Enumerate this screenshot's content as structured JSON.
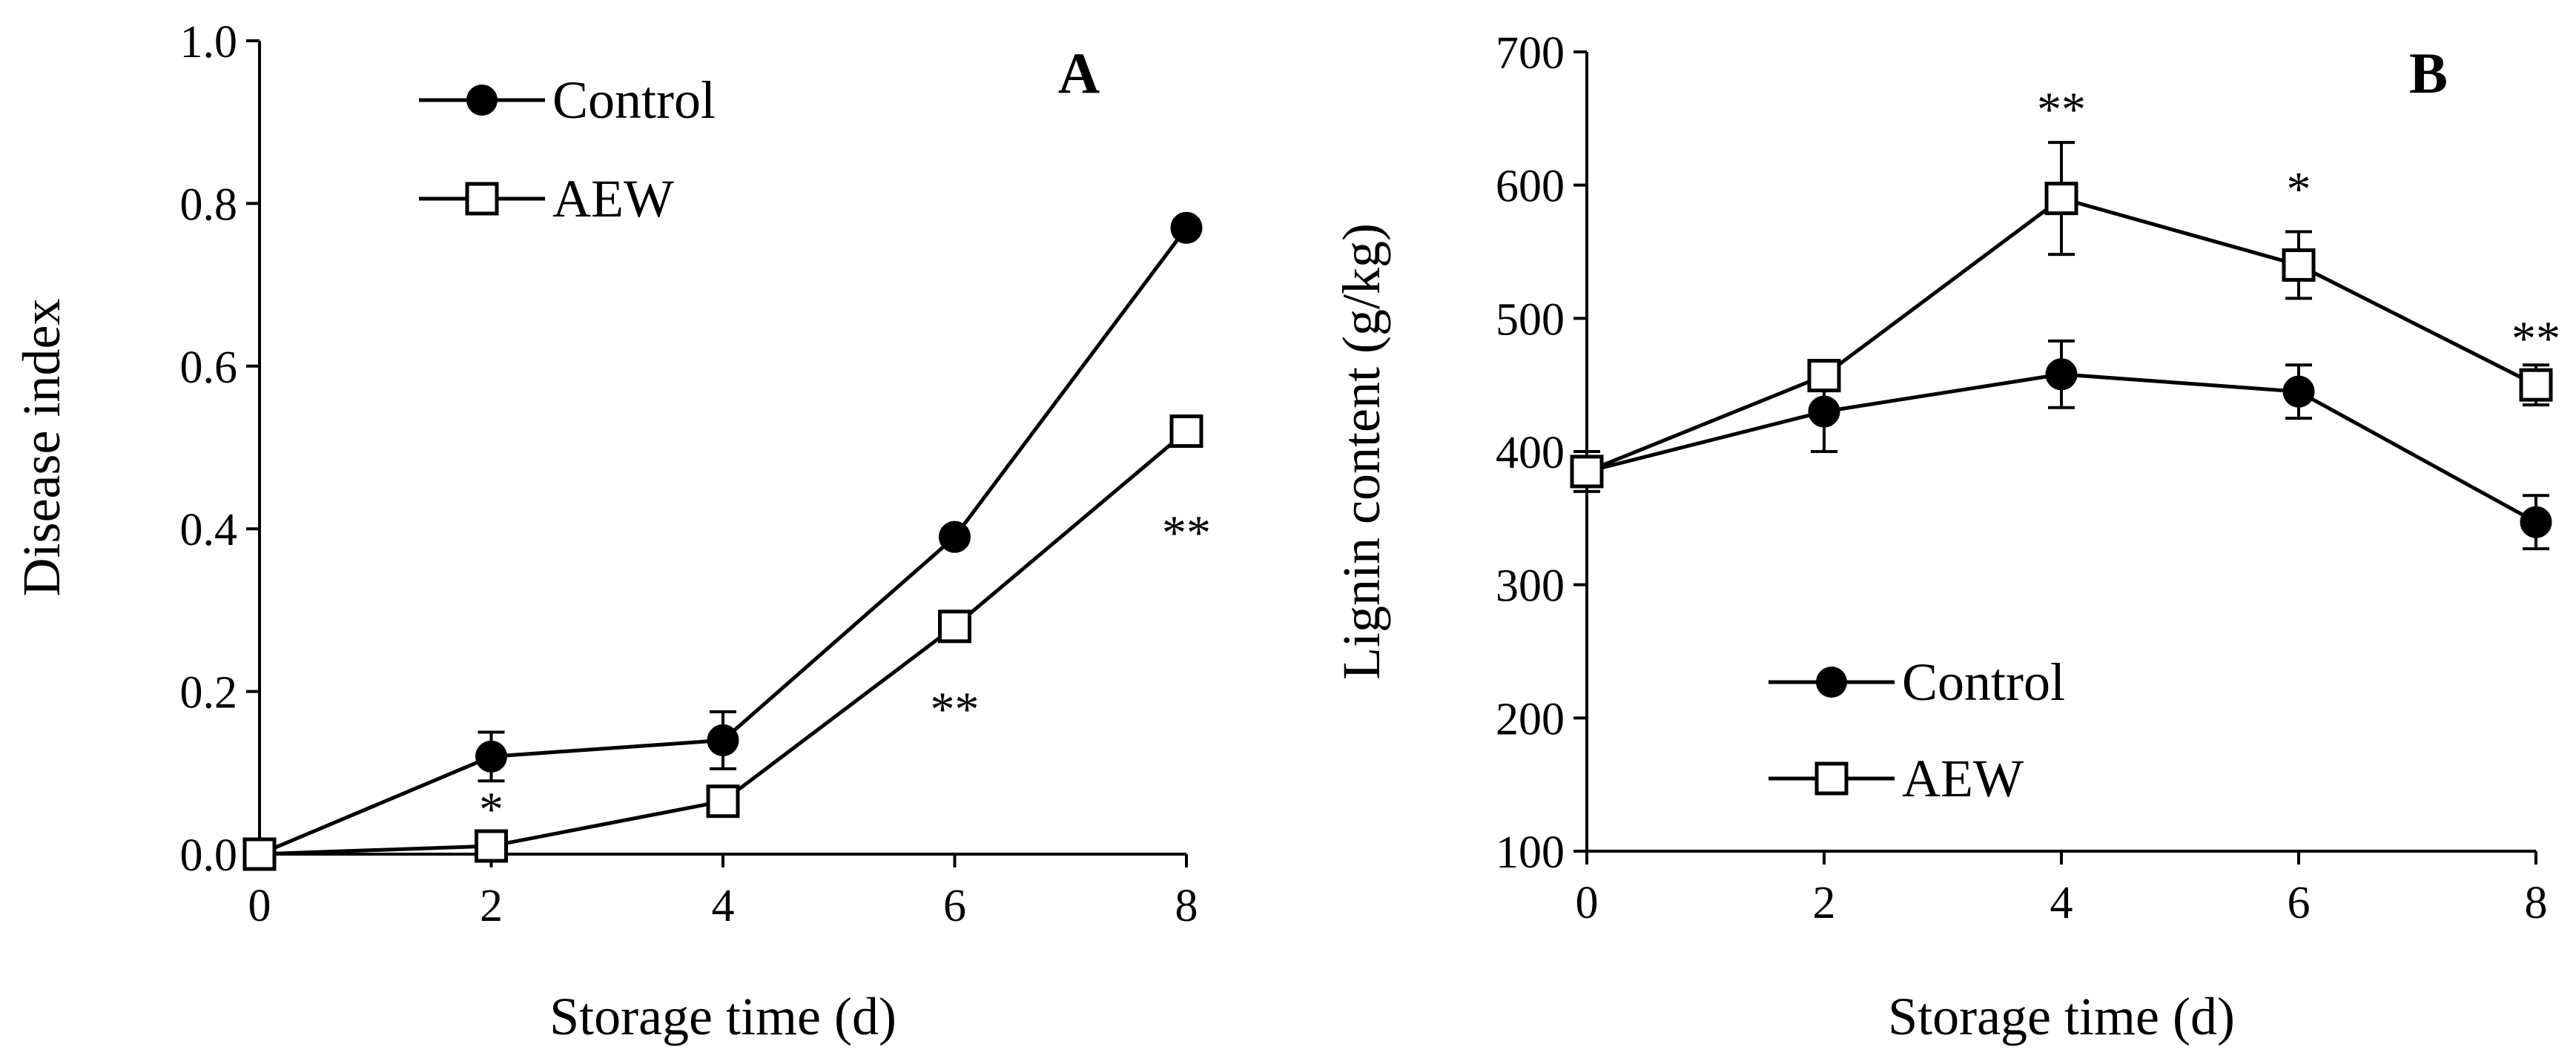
{
  "chart_data": [
    {
      "type": "line",
      "panel_label": "A",
      "title": "",
      "xlabel": "Storage time (d)",
      "ylabel": "Disease index",
      "xlim": [
        0,
        8
      ],
      "ylim": [
        0,
        1.0
      ],
      "xticks": [
        0,
        2,
        4,
        6,
        8
      ],
      "xtick_labels": [
        "0",
        "2",
        "4",
        "6",
        "8"
      ],
      "yticks": [
        0,
        0.2,
        0.4,
        0.6,
        0.8,
        1.0
      ],
      "ytick_labels": [
        "0.0",
        "0.2",
        "0.4",
        "0.6",
        "0.8",
        "1.0"
      ],
      "grid": false,
      "legend_position": "top-left",
      "x": [
        0,
        2,
        4,
        6,
        8
      ],
      "series": [
        {
          "name": "Control",
          "marker": "filled-circle",
          "values": [
            0.0,
            0.12,
            0.14,
            0.39,
            0.77
          ],
          "errors": [
            0.0,
            0.03,
            0.035,
            0.01,
            0.01
          ]
        },
        {
          "name": "AEW",
          "marker": "open-square",
          "values": [
            0.0,
            0.01,
            0.065,
            0.28,
            0.52
          ],
          "errors": [
            0.0,
            0.005,
            0.01,
            0.01,
            0.01
          ]
        }
      ],
      "annotations": [
        {
          "x": 2,
          "y": 0.055,
          "text": "*"
        },
        {
          "x": 6,
          "y": 0.178,
          "text": "**"
        },
        {
          "x": 8,
          "y": 0.395,
          "text": "**"
        }
      ]
    },
    {
      "type": "line",
      "panel_label": "B",
      "title": "",
      "xlabel": "Storage time (d)",
      "ylabel": "Lignin content (g/kg)",
      "xlim": [
        0,
        8
      ],
      "ylim": [
        100,
        700
      ],
      "xticks": [
        0,
        2,
        4,
        6,
        8
      ],
      "xtick_labels": [
        "0",
        "2",
        "4",
        "6",
        "8"
      ],
      "yticks": [
        100,
        200,
        300,
        400,
        500,
        600,
        700
      ],
      "ytick_labels": [
        "100",
        "200",
        "300",
        "400",
        "500",
        "600",
        "700"
      ],
      "grid": false,
      "legend_position": "bottom-left",
      "x": [
        0,
        2,
        4,
        6,
        8
      ],
      "series": [
        {
          "name": "Control",
          "marker": "filled-circle",
          "values": [
            385,
            430,
            458,
            445,
            347
          ],
          "errors": [
            15,
            30,
            25,
            20,
            20
          ]
        },
        {
          "name": "AEW",
          "marker": "open-square",
          "values": [
            385,
            457,
            590,
            540,
            450
          ],
          "errors": [
            10,
            8,
            42,
            25,
            15
          ]
        }
      ],
      "annotations": [
        {
          "x": 4,
          "y": 657,
          "text": "**"
        },
        {
          "x": 6,
          "y": 597,
          "text": "*"
        },
        {
          "x": 8,
          "y": 485,
          "text": "**"
        }
      ]
    }
  ]
}
